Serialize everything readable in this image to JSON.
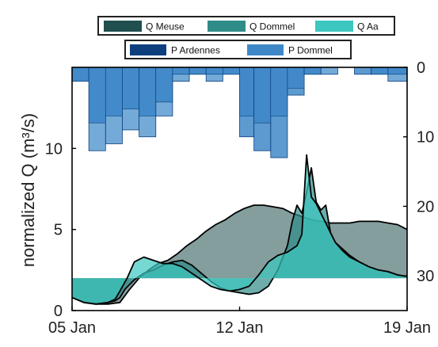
{
  "chart_data": {
    "type": "area",
    "ylabel": "normalized Q (m³/s)",
    "x_ticks": [
      {
        "label": "05 Jan",
        "day": 5
      },
      {
        "label": "12 Jan",
        "day": 12
      },
      {
        "label": "19 Jan",
        "day": 19
      }
    ],
    "xlim": [
      5,
      19
    ],
    "ylim": [
      0,
      15
    ],
    "y_ticks": [
      0,
      5,
      10
    ],
    "y2_ticks": [
      0,
      10,
      20,
      30
    ],
    "y2lim_inverted": [
      0,
      35
    ],
    "legend_q": [
      "Q Meuse",
      "Q Dommel",
      "Q Aa"
    ],
    "legend_p": [
      "P Ardennes",
      "P Dommel"
    ],
    "colors": {
      "q_meuse": "#1f4f4f",
      "q_dommel": "#2f8c88",
      "q_aa": "#3cc7c0",
      "p_ardennes": "#0d3f7f",
      "p_dommel": "#3f88c8",
      "p_overlap": "#5b9bd0"
    },
    "series": [
      {
        "name": "Q Meuse",
        "baseline": 2.0,
        "x": [
          5.0,
          5.5,
          6.0,
          6.5,
          7.0,
          7.4,
          7.8,
          8.2,
          8.6,
          9.0,
          9.4,
          9.8,
          10.2,
          10.6,
          11.0,
          11.4,
          11.8,
          12.2,
          12.6,
          13.0,
          13.4,
          13.8,
          14.2,
          14.6,
          15.0,
          15.4,
          15.8,
          16.2,
          16.6,
          17.0,
          17.4,
          17.8,
          18.2,
          18.6,
          19.0
        ],
        "values": [
          0.8,
          0.5,
          0.4,
          0.4,
          0.5,
          1.3,
          2.0,
          2.5,
          2.9,
          3.1,
          3.5,
          4.0,
          4.4,
          4.9,
          5.3,
          5.6,
          6.0,
          6.3,
          6.5,
          6.5,
          6.4,
          6.3,
          6.0,
          5.8,
          5.6,
          5.5,
          5.4,
          5.4,
          5.4,
          5.5,
          5.5,
          5.5,
          5.4,
          5.3,
          5.0
        ]
      },
      {
        "name": "Q Dommel",
        "baseline": 2.0,
        "x": [
          5.0,
          5.5,
          6.0,
          6.5,
          6.8,
          7.0,
          7.2,
          7.6,
          8.0,
          8.4,
          8.8,
          9.2,
          9.6,
          10.0,
          10.4,
          10.8,
          11.2,
          11.6,
          12.0,
          12.4,
          12.8,
          13.2,
          13.6,
          14.0,
          14.2,
          14.4,
          14.6,
          14.8,
          15.0,
          15.2,
          15.4,
          15.6,
          15.8,
          16.0,
          16.3,
          16.6,
          17.0,
          17.4,
          17.8,
          18.2,
          18.6,
          19.0
        ],
        "values": [
          0.8,
          0.5,
          0.4,
          0.5,
          0.6,
          0.8,
          1.3,
          1.9,
          2.3,
          2.5,
          2.8,
          3.0,
          3.1,
          2.8,
          2.3,
          1.8,
          1.4,
          1.2,
          1.1,
          1.0,
          1.1,
          1.5,
          2.5,
          4.0,
          5.5,
          6.5,
          6.0,
          7.3,
          8.8,
          6.7,
          6.2,
          6.5,
          4.8,
          4.2,
          3.8,
          3.4,
          3.0,
          2.7,
          2.5,
          2.4,
          2.2,
          2.1
        ]
      },
      {
        "name": "Q Aa",
        "baseline": 2.0,
        "x": [
          5.0,
          5.5,
          6.0,
          6.5,
          6.8,
          7.0,
          7.3,
          7.6,
          8.0,
          8.4,
          8.8,
          9.2,
          9.6,
          10.0,
          10.4,
          10.8,
          11.2,
          11.6,
          12.0,
          12.4,
          12.8,
          13.2,
          13.6,
          14.0,
          14.4,
          14.6,
          14.8,
          15.0,
          15.2,
          15.4,
          15.6,
          15.8,
          16.0,
          16.3,
          16.6,
          17.0,
          17.4,
          17.8,
          18.2,
          18.6,
          19.0
        ],
        "values": [
          0.8,
          0.5,
          0.4,
          0.5,
          0.7,
          1.2,
          2.0,
          3.0,
          3.3,
          3.1,
          2.9,
          2.9,
          2.7,
          2.3,
          1.9,
          1.5,
          1.3,
          1.2,
          1.3,
          1.5,
          2.2,
          3.0,
          3.4,
          3.6,
          4.0,
          4.7,
          9.6,
          7.0,
          6.6,
          6.0,
          5.4,
          4.8,
          4.2,
          3.7,
          3.3,
          3.0,
          2.7,
          2.5,
          2.4,
          2.2,
          2.1
        ]
      }
    ],
    "precip_bars": [
      {
        "x0": 5.0,
        "x1": 5.7,
        "ardennes": 2,
        "dommel": 2
      },
      {
        "x0": 5.7,
        "x1": 6.4,
        "ardennes": 12,
        "dommel": 8
      },
      {
        "x0": 6.4,
        "x1": 7.1,
        "ardennes": 11,
        "dommel": 7
      },
      {
        "x0": 7.1,
        "x1": 7.8,
        "ardennes": 9,
        "dommel": 6
      },
      {
        "x0": 7.8,
        "x1": 8.5,
        "ardennes": 10,
        "dommel": 7
      },
      {
        "x0": 8.5,
        "x1": 9.2,
        "ardennes": 7,
        "dommel": 5
      },
      {
        "x0": 9.2,
        "x1": 9.9,
        "ardennes": 2,
        "dommel": 1
      },
      {
        "x0": 9.9,
        "x1": 10.6,
        "ardennes": 1,
        "dommel": 1
      },
      {
        "x0": 10.6,
        "x1": 11.3,
        "ardennes": 2,
        "dommel": 1
      },
      {
        "x0": 11.3,
        "x1": 12.0,
        "ardennes": 1,
        "dommel": 1
      },
      {
        "x0": 12.0,
        "x1": 12.6,
        "ardennes": 7,
        "dommel": 10
      },
      {
        "x0": 12.6,
        "x1": 13.3,
        "ardennes": 8,
        "dommel": 12
      },
      {
        "x0": 13.3,
        "x1": 14.0,
        "ardennes": 7,
        "dommel": 13
      },
      {
        "x0": 14.0,
        "x1": 14.7,
        "ardennes": 3,
        "dommel": 4
      },
      {
        "x0": 14.7,
        "x1": 15.4,
        "ardennes": 1,
        "dommel": 1
      },
      {
        "x0": 15.4,
        "x1": 16.1,
        "ardennes": 1,
        "dommel": 0
      },
      {
        "x0": 16.1,
        "x1": 16.8,
        "ardennes": 0,
        "dommel": 0
      },
      {
        "x0": 16.8,
        "x1": 17.5,
        "ardennes": 0,
        "dommel": 1
      },
      {
        "x0": 17.5,
        "x1": 18.2,
        "ardennes": 1,
        "dommel": 1
      },
      {
        "x0": 18.2,
        "x1": 19.0,
        "ardennes": 2,
        "dommel": 1
      }
    ]
  }
}
